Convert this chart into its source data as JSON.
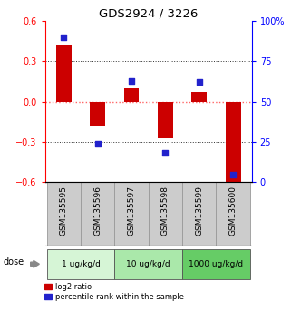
{
  "title": "GDS2924 / 3226",
  "samples": [
    "GSM135595",
    "GSM135596",
    "GSM135597",
    "GSM135598",
    "GSM135599",
    "GSM135600"
  ],
  "log2_ratio": [
    0.42,
    -0.18,
    0.1,
    -0.27,
    0.07,
    -0.62
  ],
  "percentile_rank": [
    90,
    24,
    63,
    18,
    62,
    5
  ],
  "dose_groups": [
    {
      "label": "1 ug/kg/d",
      "count": 2,
      "color": "#d6f5d6"
    },
    {
      "label": "10 ug/kg/d",
      "count": 2,
      "color": "#aae8aa"
    },
    {
      "label": "1000 ug/kg/d",
      "count": 2,
      "color": "#66cc66"
    }
  ],
  "ylim_left": [
    -0.6,
    0.6
  ],
  "ylim_right": [
    0,
    100
  ],
  "yticks_left": [
    -0.6,
    -0.3,
    0.0,
    0.3,
    0.6
  ],
  "yticks_right": [
    0,
    25,
    50,
    75,
    100
  ],
  "bar_color": "#cc0000",
  "dot_color": "#2222cc",
  "hline_zero_color": "#ff6666",
  "hline_color": "#333333",
  "bg_color": "#ffffff",
  "sample_box_color": "#cccccc",
  "legend_bar_label": "log2 ratio",
  "legend_dot_label": "percentile rank within the sample",
  "dose_label": "dose"
}
